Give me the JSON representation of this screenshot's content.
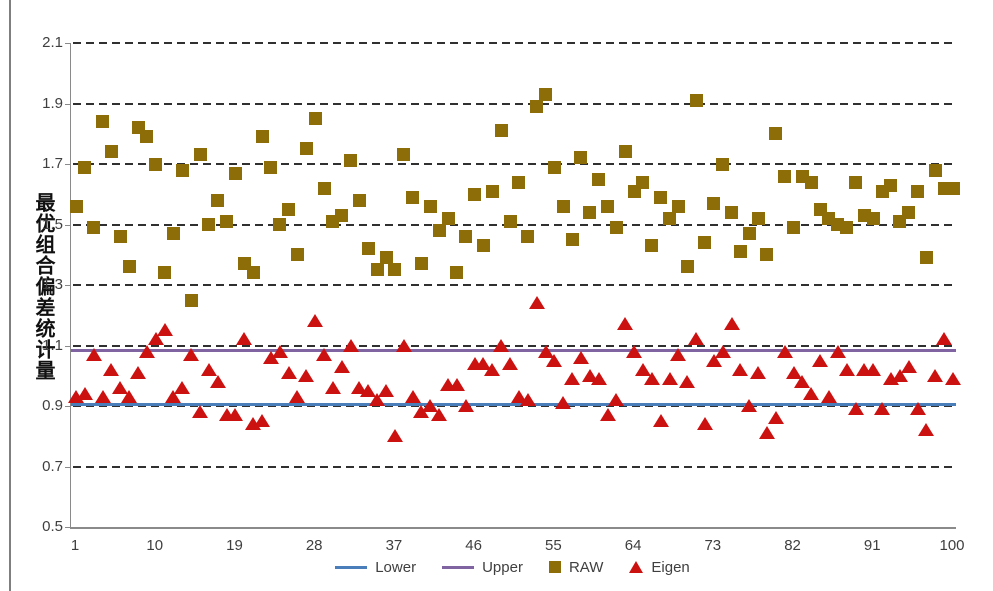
{
  "window": {
    "left_border_color": "#7f7f7f"
  },
  "axis": {
    "axis_color": "#8a8a8a",
    "gridline_color": "#303030",
    "text_color": "#3f3f3f"
  },
  "chart_data": {
    "type": "scatter",
    "title": "",
    "xlabel": "",
    "ylabel": "最优组合偏差统计量",
    "ylim": [
      0.5,
      2.1
    ],
    "yticks": [
      2.1,
      1.9,
      1.7,
      1.5,
      1.3,
      1.1,
      0.9,
      0.7,
      0.5
    ],
    "xlim": [
      1,
      100
    ],
    "xticks": [
      1,
      10,
      19,
      28,
      37,
      46,
      55,
      64,
      73,
      82,
      91,
      100
    ],
    "grid": "horizontal dashed lines at each y tick except 0.5",
    "legend_position": "bottom center",
    "x_rule": "scatter series use sequential integer x values 1..100",
    "series": [
      {
        "name": "Lower",
        "type": "hline",
        "value": 0.905,
        "color": "#4a7ebb"
      },
      {
        "name": "Upper",
        "type": "hline",
        "value": 1.085,
        "color": "#8064a2"
      },
      {
        "name": "RAW",
        "type": "scatter",
        "marker": "square",
        "color": "#8c6d07",
        "values": [
          1.56,
          1.69,
          1.49,
          1.84,
          1.74,
          1.46,
          1.36,
          1.82,
          1.79,
          1.7,
          1.34,
          1.47,
          1.68,
          1.25,
          1.73,
          1.5,
          1.58,
          1.51,
          1.67,
          1.37,
          1.34,
          1.79,
          1.69,
          1.5,
          1.55,
          1.4,
          1.75,
          1.85,
          1.62,
          1.51,
          1.53,
          1.71,
          1.58,
          1.42,
          1.35,
          1.39,
          1.35,
          1.73,
          1.59,
          1.37,
          1.56,
          1.48,
          1.52,
          1.34,
          1.46,
          1.6,
          1.43,
          1.61,
          1.81,
          1.51,
          1.64,
          1.46,
          1.89,
          1.93,
          1.69,
          1.56,
          1.45,
          1.72,
          1.54,
          1.65,
          1.56,
          1.49,
          1.74,
          1.61,
          1.64,
          1.43,
          1.59,
          1.52,
          1.56,
          1.36,
          1.91,
          1.44,
          1.57,
          1.7,
          1.54,
          1.41,
          1.47,
          1.52,
          1.4,
          1.8,
          1.66,
          1.49,
          1.66,
          1.64,
          1.55,
          1.52,
          1.5,
          1.49,
          1.64,
          1.53,
          1.52,
          1.61,
          1.63,
          1.51,
          1.54,
          1.61,
          1.39,
          1.68,
          1.62,
          1.62
        ]
      },
      {
        "name": "Eigen",
        "type": "scatter",
        "marker": "triangle",
        "color": "#cc1111",
        "values": [
          0.93,
          0.94,
          1.07,
          0.93,
          1.02,
          0.96,
          0.93,
          1.01,
          1.08,
          1.12,
          1.15,
          0.93,
          0.96,
          1.07,
          0.88,
          1.02,
          0.98,
          0.87,
          0.87,
          1.12,
          0.84,
          0.85,
          1.06,
          1.08,
          1.01,
          0.93,
          1.0,
          1.18,
          1.07,
          0.96,
          1.03,
          1.1,
          0.96,
          0.95,
          0.92,
          0.95,
          0.8,
          1.1,
          0.93,
          0.88,
          0.9,
          0.87,
          0.97,
          0.97,
          0.9,
          1.04,
          1.04,
          1.02,
          1.1,
          1.04,
          0.93,
          0.92,
          1.24,
          1.08,
          1.05,
          0.91,
          0.99,
          1.06,
          1.0,
          0.99,
          0.87,
          0.92,
          1.17,
          1.08,
          1.02,
          0.99,
          0.85,
          0.99,
          1.07,
          0.98,
          1.12,
          0.84,
          1.05,
          1.08,
          1.17,
          1.02,
          0.9,
          1.01,
          0.81,
          0.86,
          1.08,
          1.01,
          0.98,
          0.94,
          1.05,
          0.93,
          1.08,
          1.02,
          0.89,
          1.02,
          1.02,
          0.89,
          0.99,
          1.0,
          1.03,
          0.89,
          0.82,
          1.0,
          1.12,
          0.99
        ]
      }
    ]
  }
}
